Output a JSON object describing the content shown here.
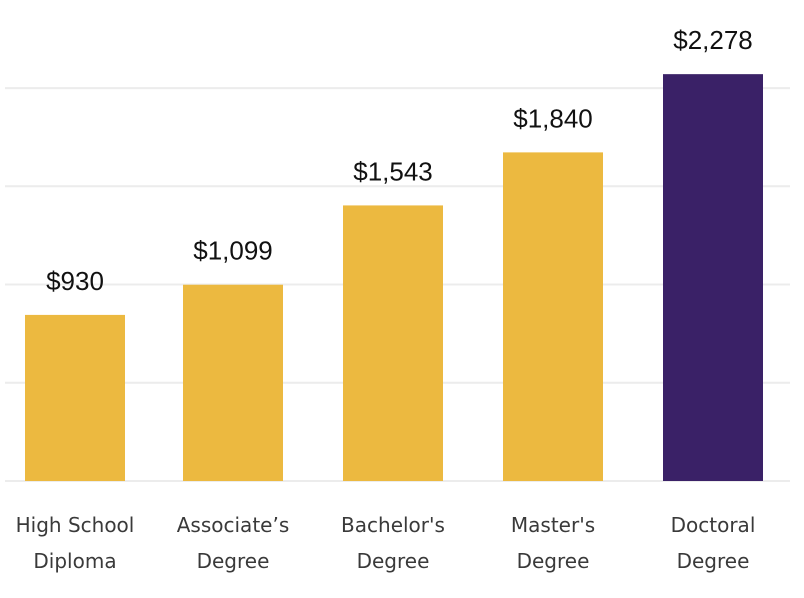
{
  "chart_data": {
    "type": "bar",
    "title": "",
    "xlabel": "",
    "ylabel": "",
    "categories": [
      [
        "High School",
        "Diploma"
      ],
      [
        "Associate’s",
        "Degree"
      ],
      [
        "Bachelor's",
        "Degree"
      ],
      [
        "Master's",
        "Degree"
      ],
      [
        "Doctoral",
        "Degree"
      ]
    ],
    "values": [
      930,
      1099,
      1543,
      1840,
      2278
    ],
    "value_labels": [
      "$930",
      "$1,099",
      "$1,543",
      "$1,840",
      "$2,278"
    ],
    "highlight_index": 4,
    "colors": {
      "bar": "#ECB940",
      "highlight": "#3A2167",
      "grid": "#ececec"
    },
    "ylim": [
      0,
      2400
    ],
    "gridlines": [
      0,
      550,
      1100,
      1650,
      2200
    ],
    "grid": true
  }
}
